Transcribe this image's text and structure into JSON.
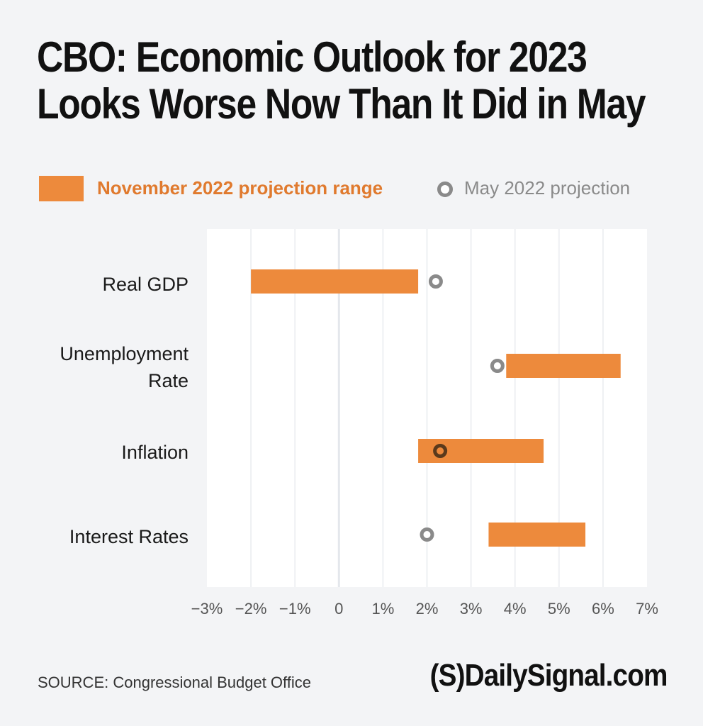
{
  "title": {
    "line1": "CBO: Economic Outlook for 2023",
    "line2": "Looks Worse Now Than It Did in May"
  },
  "legend": {
    "range_label": "November 2022 projection range",
    "may_label": "May 2022 projection"
  },
  "colors": {
    "range": "#ed8a3c",
    "range_text": "#e07a2e",
    "may_marker": "#8a8a8a",
    "may_marker_overlap": "#5a3a1c",
    "plot_bg": "#ffffff",
    "page_bg": "#f3f4f6"
  },
  "chart_data": {
    "type": "range-dot",
    "title": "CBO: Economic Outlook for 2023 Looks Worse Now Than It Did in May",
    "xlim": [
      -3,
      7
    ],
    "xticks": [
      -3,
      -2,
      -1,
      0,
      1,
      2,
      3,
      4,
      5,
      6,
      7
    ],
    "xtick_labels": [
      "−3%",
      "−2%",
      "−1%",
      "0",
      "1%",
      "2%",
      "3%",
      "4%",
      "5%",
      "6%",
      "7%"
    ],
    "grid": true,
    "categories": [
      {
        "label_lines": [
          "Real GDP"
        ],
        "range": [
          -2.0,
          1.8
        ],
        "may": 2.2
      },
      {
        "label_lines": [
          "Unemployment",
          "Rate"
        ],
        "range": [
          3.8,
          6.4
        ],
        "may": 3.6
      },
      {
        "label_lines": [
          "Inflation"
        ],
        "range": [
          1.8,
          4.65
        ],
        "may": 2.3
      },
      {
        "label_lines": [
          "Interest Rates"
        ],
        "range": [
          3.4,
          5.6
        ],
        "may": 2.0
      }
    ],
    "series": [
      {
        "name": "November 2022 projection range",
        "kind": "range"
      },
      {
        "name": "May 2022 projection",
        "kind": "point"
      }
    ]
  },
  "footer": {
    "source": "SOURCE: Congressional Budget Office",
    "brand": "(S)DailySignal.com"
  }
}
